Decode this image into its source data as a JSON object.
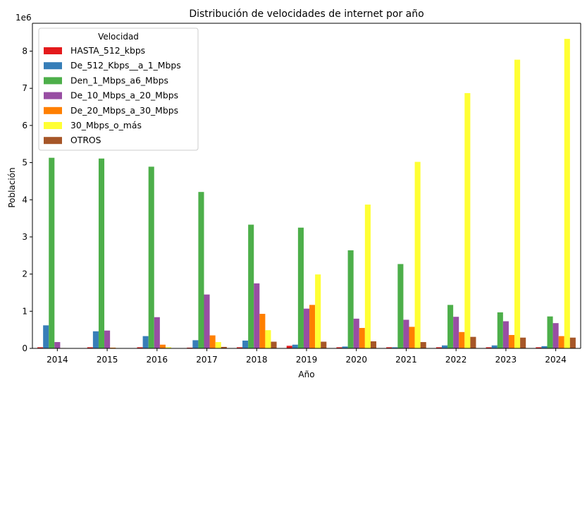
{
  "chart_data": {
    "type": "bar",
    "title": "Distribución de velocidades de internet por año",
    "xlabel": "Año",
    "ylabel": "Población",
    "y_offset_label": "1e6",
    "ylim": [
      0,
      8.75
    ],
    "yticks": [
      0,
      1,
      2,
      3,
      4,
      5,
      6,
      7,
      8
    ],
    "y_unit_multiplier": 1000000,
    "grid": false,
    "legend": {
      "title": "Velocidad",
      "placement": "top-left"
    },
    "categories": [
      "2014",
      "2015",
      "2016",
      "2017",
      "2018",
      "2019",
      "2020",
      "2021",
      "2022",
      "2023",
      "2024"
    ],
    "series": [
      {
        "name": "HASTA_512_kbps",
        "color": "#e41a1c",
        "values": [
          0.03,
          0.03,
          0.03,
          0.02,
          0.03,
          0.07,
          0.03,
          0.03,
          0.03,
          0.03,
          0.03
        ]
      },
      {
        "name": "De_512_Kbps__a_1_Mbps",
        "color": "#377eb8",
        "values": [
          0.62,
          0.46,
          0.33,
          0.22,
          0.21,
          0.1,
          0.05,
          0.03,
          0.08,
          0.08,
          0.06
        ]
      },
      {
        "name": "Den_1_Mbps_a6_Mbps",
        "color": "#4daf4a",
        "values": [
          5.13,
          5.11,
          4.89,
          4.21,
          3.33,
          3.25,
          2.64,
          2.27,
          1.17,
          0.97,
          0.86
        ]
      },
      {
        "name": "De_10_Mbps_a_20_Mbps",
        "color": "#984ea3",
        "values": [
          0.17,
          0.48,
          0.84,
          1.45,
          1.75,
          1.07,
          0.8,
          0.77,
          0.85,
          0.73,
          0.68
        ]
      },
      {
        "name": "De_20_Mbps_a_30_Mbps",
        "color": "#ff7f00",
        "values": [
          0.01,
          0.02,
          0.1,
          0.35,
          0.93,
          1.17,
          0.55,
          0.58,
          0.44,
          0.36,
          0.33
        ]
      },
      {
        "name": "30_Mbps_o_más",
        "color": "#ffff33",
        "values": [
          0.0,
          0.01,
          0.03,
          0.17,
          0.49,
          1.99,
          3.87,
          5.02,
          6.87,
          7.77,
          8.33
        ]
      },
      {
        "name": "OTROS",
        "color": "#a65628",
        "values": [
          0.0,
          0.0,
          0.0,
          0.04,
          0.18,
          0.18,
          0.19,
          0.17,
          0.31,
          0.29,
          0.29
        ]
      }
    ]
  }
}
